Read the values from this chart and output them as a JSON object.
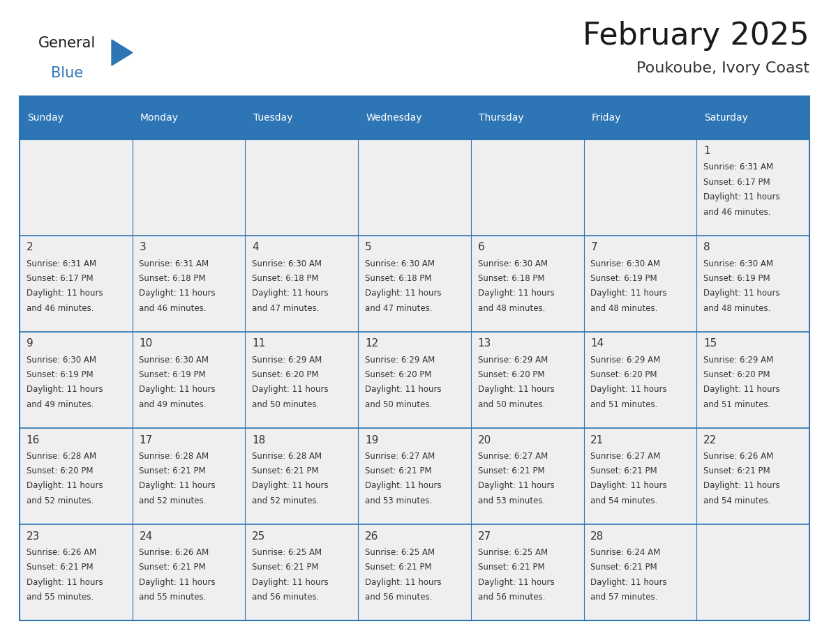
{
  "title": "February 2025",
  "subtitle": "Poukoube, Ivory Coast",
  "header_color": "#2E75B6",
  "header_text_color": "#FFFFFF",
  "cell_bg_color": "#EFEFEF",
  "border_color": "#2E75B6",
  "day_number_color": "#333333",
  "text_color": "#333333",
  "days_of_week": [
    "Sunday",
    "Monday",
    "Tuesday",
    "Wednesday",
    "Thursday",
    "Friday",
    "Saturday"
  ],
  "weeks": [
    [
      {
        "day": "",
        "sunrise": "",
        "sunset": "",
        "daylight": ""
      },
      {
        "day": "",
        "sunrise": "",
        "sunset": "",
        "daylight": ""
      },
      {
        "day": "",
        "sunrise": "",
        "sunset": "",
        "daylight": ""
      },
      {
        "day": "",
        "sunrise": "",
        "sunset": "",
        "daylight": ""
      },
      {
        "day": "",
        "sunrise": "",
        "sunset": "",
        "daylight": ""
      },
      {
        "day": "",
        "sunrise": "",
        "sunset": "",
        "daylight": ""
      },
      {
        "day": "1",
        "sunrise": "6:31 AM",
        "sunset": "6:17 PM",
        "daylight": "11 hours\nand 46 minutes."
      }
    ],
    [
      {
        "day": "2",
        "sunrise": "6:31 AM",
        "sunset": "6:17 PM",
        "daylight": "11 hours\nand 46 minutes."
      },
      {
        "day": "3",
        "sunrise": "6:31 AM",
        "sunset": "6:18 PM",
        "daylight": "11 hours\nand 46 minutes."
      },
      {
        "day": "4",
        "sunrise": "6:30 AM",
        "sunset": "6:18 PM",
        "daylight": "11 hours\nand 47 minutes."
      },
      {
        "day": "5",
        "sunrise": "6:30 AM",
        "sunset": "6:18 PM",
        "daylight": "11 hours\nand 47 minutes."
      },
      {
        "day": "6",
        "sunrise": "6:30 AM",
        "sunset": "6:18 PM",
        "daylight": "11 hours\nand 48 minutes."
      },
      {
        "day": "7",
        "sunrise": "6:30 AM",
        "sunset": "6:19 PM",
        "daylight": "11 hours\nand 48 minutes."
      },
      {
        "day": "8",
        "sunrise": "6:30 AM",
        "sunset": "6:19 PM",
        "daylight": "11 hours\nand 48 minutes."
      }
    ],
    [
      {
        "day": "9",
        "sunrise": "6:30 AM",
        "sunset": "6:19 PM",
        "daylight": "11 hours\nand 49 minutes."
      },
      {
        "day": "10",
        "sunrise": "6:30 AM",
        "sunset": "6:19 PM",
        "daylight": "11 hours\nand 49 minutes."
      },
      {
        "day": "11",
        "sunrise": "6:29 AM",
        "sunset": "6:20 PM",
        "daylight": "11 hours\nand 50 minutes."
      },
      {
        "day": "12",
        "sunrise": "6:29 AM",
        "sunset": "6:20 PM",
        "daylight": "11 hours\nand 50 minutes."
      },
      {
        "day": "13",
        "sunrise": "6:29 AM",
        "sunset": "6:20 PM",
        "daylight": "11 hours\nand 50 minutes."
      },
      {
        "day": "14",
        "sunrise": "6:29 AM",
        "sunset": "6:20 PM",
        "daylight": "11 hours\nand 51 minutes."
      },
      {
        "day": "15",
        "sunrise": "6:29 AM",
        "sunset": "6:20 PM",
        "daylight": "11 hours\nand 51 minutes."
      }
    ],
    [
      {
        "day": "16",
        "sunrise": "6:28 AM",
        "sunset": "6:20 PM",
        "daylight": "11 hours\nand 52 minutes."
      },
      {
        "day": "17",
        "sunrise": "6:28 AM",
        "sunset": "6:21 PM",
        "daylight": "11 hours\nand 52 minutes."
      },
      {
        "day": "18",
        "sunrise": "6:28 AM",
        "sunset": "6:21 PM",
        "daylight": "11 hours\nand 52 minutes."
      },
      {
        "day": "19",
        "sunrise": "6:27 AM",
        "sunset": "6:21 PM",
        "daylight": "11 hours\nand 53 minutes."
      },
      {
        "day": "20",
        "sunrise": "6:27 AM",
        "sunset": "6:21 PM",
        "daylight": "11 hours\nand 53 minutes."
      },
      {
        "day": "21",
        "sunrise": "6:27 AM",
        "sunset": "6:21 PM",
        "daylight": "11 hours\nand 54 minutes."
      },
      {
        "day": "22",
        "sunrise": "6:26 AM",
        "sunset": "6:21 PM",
        "daylight": "11 hours\nand 54 minutes."
      }
    ],
    [
      {
        "day": "23",
        "sunrise": "6:26 AM",
        "sunset": "6:21 PM",
        "daylight": "11 hours\nand 55 minutes."
      },
      {
        "day": "24",
        "sunrise": "6:26 AM",
        "sunset": "6:21 PM",
        "daylight": "11 hours\nand 55 minutes."
      },
      {
        "day": "25",
        "sunrise": "6:25 AM",
        "sunset": "6:21 PM",
        "daylight": "11 hours\nand 56 minutes."
      },
      {
        "day": "26",
        "sunrise": "6:25 AM",
        "sunset": "6:21 PM",
        "daylight": "11 hours\nand 56 minutes."
      },
      {
        "day": "27",
        "sunrise": "6:25 AM",
        "sunset": "6:21 PM",
        "daylight": "11 hours\nand 56 minutes."
      },
      {
        "day": "28",
        "sunrise": "6:24 AM",
        "sunset": "6:21 PM",
        "daylight": "11 hours\nand 57 minutes."
      },
      {
        "day": "",
        "sunrise": "",
        "sunset": "",
        "daylight": ""
      }
    ]
  ],
  "logo_general_color": "#1a1a1a",
  "logo_blue_color": "#2E75B6",
  "figsize": [
    11.88,
    9.18
  ],
  "dpi": 100
}
